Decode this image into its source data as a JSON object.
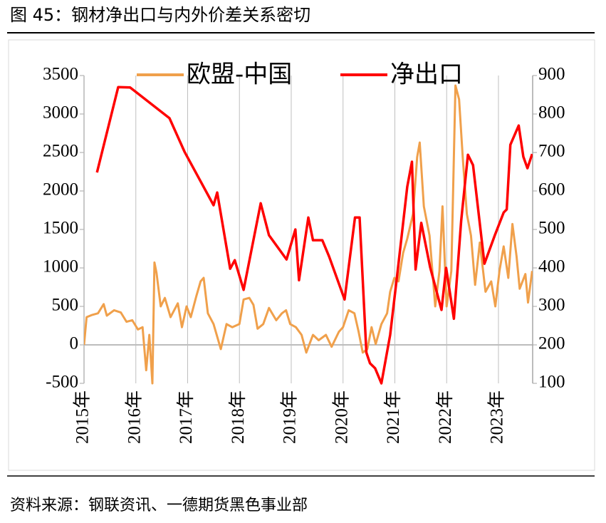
{
  "chart_data": {
    "type": "line",
    "title": "图 45：钢材净出口与内外价差关系密切",
    "source": "资料来源：钢联资讯、一德期货黑色事业部",
    "xlim": [
      2015,
      2023.66
    ],
    "xticks": [
      {
        "value": 2015,
        "label": "2015年"
      },
      {
        "value": 2016,
        "label": "2016年"
      },
      {
        "value": 2017,
        "label": "2017年"
      },
      {
        "value": 2018,
        "label": "2018年"
      },
      {
        "value": 2019,
        "label": "2019年"
      },
      {
        "value": 2020,
        "label": "2020年"
      },
      {
        "value": 2021,
        "label": "2021年"
      },
      {
        "value": 2022,
        "label": "2022年"
      },
      {
        "value": 2023,
        "label": "2023年"
      }
    ],
    "ylim": [
      -500,
      3500
    ],
    "yticks": [
      -500,
      0,
      500,
      1000,
      1500,
      2000,
      2500,
      3000,
      3500
    ],
    "y2lim": [
      100,
      900
    ],
    "y2ticks": [
      100,
      200,
      300,
      400,
      500,
      600,
      700,
      800,
      900
    ],
    "legend": "top",
    "series": [
      {
        "name": "欧盟-中国",
        "color": "#f0a04b",
        "axis": "y",
        "x": [
          2015.0,
          2015.05,
          2015.16,
          2015.27,
          2015.38,
          2015.44,
          2015.58,
          2015.71,
          2015.82,
          2015.93,
          2016.04,
          2016.13,
          2016.2,
          2016.26,
          2016.32,
          2016.36,
          2016.4,
          2016.48,
          2016.56,
          2016.67,
          2016.81,
          2016.89,
          2016.98,
          2017.06,
          2017.17,
          2017.25,
          2017.31,
          2017.39,
          2017.5,
          2017.64,
          2017.75,
          2017.86,
          2018.0,
          2018.08,
          2018.19,
          2018.27,
          2018.35,
          2018.46,
          2018.57,
          2018.71,
          2018.82,
          2018.9,
          2018.98,
          2019.09,
          2019.2,
          2019.29,
          2019.42,
          2019.53,
          2019.67,
          2019.78,
          2019.92,
          2020.0,
          2020.11,
          2020.22,
          2020.3,
          2020.38,
          2020.47,
          2020.55,
          2020.63,
          2020.74,
          2020.85,
          2020.91,
          2020.99,
          2021.07,
          2021.16,
          2021.24,
          2021.35,
          2021.43,
          2021.48,
          2021.56,
          2021.67,
          2021.78,
          2021.86,
          2021.92,
          2022.0,
          2022.09,
          2022.17,
          2022.24,
          2022.31,
          2022.39,
          2022.47,
          2022.55,
          2022.64,
          2022.75,
          2022.86,
          2022.94,
          2023.02,
          2023.1,
          2023.19,
          2023.27,
          2023.35,
          2023.41,
          2023.52,
          2023.57,
          2023.65
        ],
        "values": [
          0,
          360,
          390,
          410,
          530,
          380,
          450,
          420,
          300,
          320,
          200,
          230,
          -330,
          130,
          -500,
          1070,
          935,
          500,
          610,
          360,
          540,
          230,
          500,
          360,
          640,
          825,
          870,
          410,
          270,
          -55,
          270,
          230,
          270,
          590,
          610,
          520,
          210,
          270,
          480,
          320,
          410,
          450,
          270,
          230,
          130,
          -100,
          130,
          60,
          130,
          -25,
          170,
          230,
          450,
          410,
          170,
          -100,
          -55,
          230,
          10,
          270,
          410,
          690,
          870,
          825,
          1195,
          1380,
          1700,
          2440,
          2630,
          1800,
          1420,
          500,
          960,
          1800,
          500,
          960,
          3370,
          3190,
          2440,
          1700,
          1420,
          780,
          1330,
          690,
          825,
          500,
          960,
          1280,
          870,
          1570,
          1150,
          730,
          920,
          550,
          960
        ]
      },
      {
        "name": "净出口",
        "color": "#ff0000",
        "axis": "y2",
        "x": [
          2015.25,
          2015.66,
          2015.89,
          2016.65,
          2016.94,
          2017.5,
          2017.57,
          2017.82,
          2017.91,
          2018.08,
          2018.41,
          2018.57,
          2018.91,
          2019.08,
          2019.15,
          2019.33,
          2019.42,
          2019.6,
          2019.73,
          2020.03,
          2020.23,
          2020.32,
          2020.45,
          2020.52,
          2020.62,
          2020.74,
          2020.91,
          2021.07,
          2021.24,
          2021.33,
          2021.4,
          2021.51,
          2021.68,
          2021.9,
          2021.99,
          2022.14,
          2022.28,
          2022.41,
          2022.51,
          2022.73,
          2022.93,
          2023.1,
          2023.16,
          2023.23,
          2023.39,
          2023.48,
          2023.56,
          2023.65
        ],
        "values": [
          648,
          870,
          869,
          789,
          702,
          563,
          596,
          398,
          420,
          343,
          568,
          485,
          422,
          500,
          368,
          531,
          472,
          472,
          430,
          318,
          531,
          531,
          180,
          152,
          139,
          100,
          226,
          411,
          611,
          676,
          396,
          517,
          402,
          291,
          400,
          268,
          522,
          694,
          667,
          411,
          485,
          544,
          552,
          720,
          770,
          689,
          659,
          696
        ]
      }
    ]
  }
}
